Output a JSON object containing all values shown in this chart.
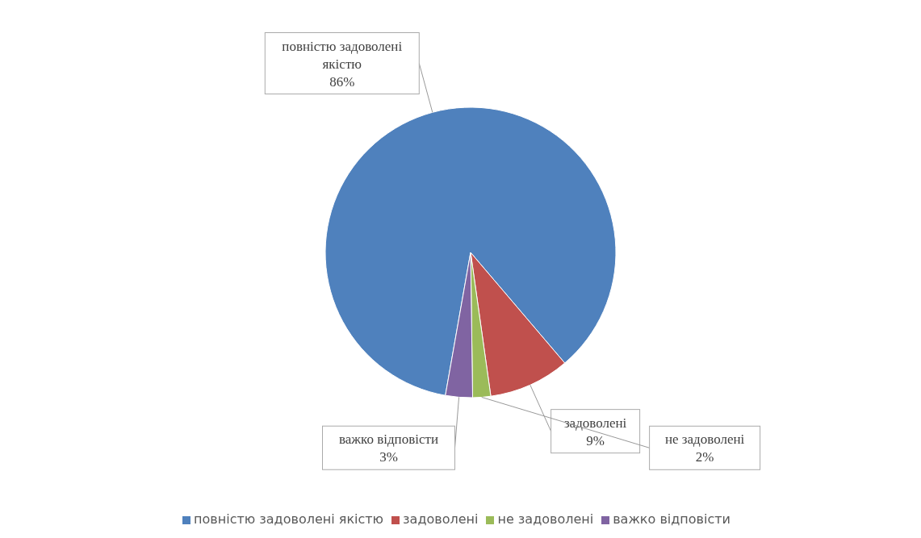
{
  "chart_data": {
    "type": "pie",
    "categories": [
      "повністю задоволені якістю",
      "задоволені",
      "не задоволені",
      "важко відповісти"
    ],
    "values": [
      86,
      9,
      2,
      3
    ],
    "colors": [
      "#4f81bd",
      "#c0504d",
      "#9bbb59",
      "#8064a2"
    ],
    "value_labels": [
      "86%",
      "9%",
      "2%",
      "3%"
    ],
    "legend": "bottom"
  }
}
